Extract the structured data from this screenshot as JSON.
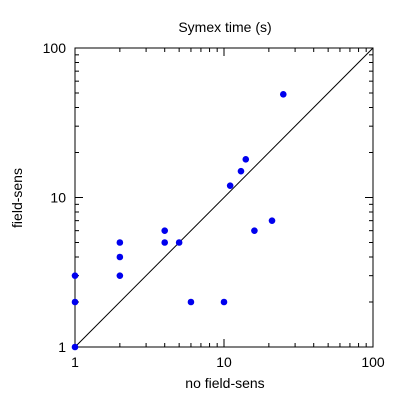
{
  "chart_data": {
    "type": "scatter",
    "title": "Symex time (s)",
    "xlabel": "no field-sens",
    "ylabel": "field-sens",
    "x_scale": "log",
    "y_scale": "log",
    "xlim": [
      1,
      100
    ],
    "ylim": [
      1,
      100
    ],
    "x_ticks": [
      1,
      10,
      100
    ],
    "y_ticks": [
      1,
      10,
      100
    ],
    "x_tick_labels": [
      "1",
      "10",
      "100"
    ],
    "y_tick_labels": [
      "1",
      "10",
      "100"
    ],
    "grid": false,
    "reference_line": "y = x",
    "colors": {
      "points": "#0000ee",
      "line": "#000000",
      "frame": "#000000"
    },
    "series": [
      {
        "points": [
          {
            "x": 1,
            "y": 1
          },
          {
            "x": 1,
            "y": 2
          },
          {
            "x": 1,
            "y": 3
          },
          {
            "x": 2,
            "y": 3
          },
          {
            "x": 2,
            "y": 4
          },
          {
            "x": 2,
            "y": 5
          },
          {
            "x": 4,
            "y": 5
          },
          {
            "x": 4,
            "y": 6
          },
          {
            "x": 5,
            "y": 5
          },
          {
            "x": 6,
            "y": 2
          },
          {
            "x": 10,
            "y": 2
          },
          {
            "x": 11,
            "y": 12
          },
          {
            "x": 13,
            "y": 15
          },
          {
            "x": 14,
            "y": 18
          },
          {
            "x": 16,
            "y": 6
          },
          {
            "x": 21,
            "y": 7
          },
          {
            "x": 25,
            "y": 49
          }
        ]
      }
    ]
  }
}
